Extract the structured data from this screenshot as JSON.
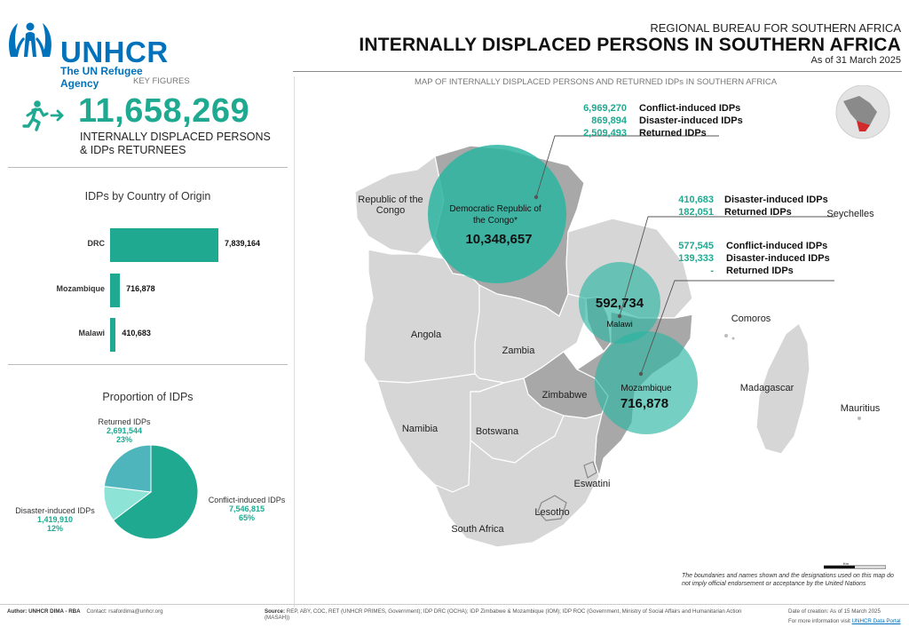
{
  "brand": {
    "name": "UNHCR",
    "tagline": "The UN Refugee Agency",
    "color": "#0072bc"
  },
  "header": {
    "bureau": "REGIONAL BUREAU FOR SOUTHERN AFRICA",
    "title": "INTERNALLY DISPLACED PERSONS IN SOUTHERN AFRICA",
    "date": "As of 31 March 2025"
  },
  "key_figures": {
    "section_label": "KEY FIGURES",
    "icon": "person-running-arrow-icon",
    "total": "11,658,269",
    "description_line1": "INTERNALLY DISPLACED PERSONS",
    "description_line2": "& IDPs RETURNEES"
  },
  "colors": {
    "accent": "#1fa991",
    "pie_conflict": "#1fa991",
    "pie_returned": "#4fb5bd",
    "pie_disaster": "#8de3d5",
    "map_land": "#d6d6d6",
    "map_highlight": "#a6a6a6",
    "bubble": "#2bb5a1"
  },
  "chart_data": [
    {
      "type": "bar",
      "title": "IDPs by Country of Origin",
      "categories": [
        "DRC",
        "Mozambique",
        "Malawi"
      ],
      "values": [
        7839164,
        716878,
        410683
      ],
      "value_labels": [
        "7,839,164",
        "716,878",
        "410,683"
      ]
    },
    {
      "type": "pie",
      "title": "Proportion of IDPs",
      "slices": [
        {
          "name": "Conflict-induced IDPs",
          "value": 7546815,
          "value_label": "7,546,815",
          "percent": "65%"
        },
        {
          "name": "Disaster-induced IDPs",
          "value": 1419910,
          "value_label": "1,419,910",
          "percent": "12%"
        },
        {
          "name": "Returned IDPs",
          "value": 2691544,
          "value_label": "2,691,544",
          "percent": "23%"
        }
      ]
    }
  ],
  "map": {
    "title": "MAP OF INTERNALLY DISPLACED PERSONS AND RETURNED IDPs IN SOUTHERN AFRICA",
    "countries": {
      "roc": {
        "line1": "Republic of the",
        "line2": "Congo"
      },
      "angola": "Angola",
      "zambia": "Zambia",
      "zimbabwe": "Zimbabwe",
      "namibia": "Namibia",
      "botswana": "Botswana",
      "eswatini": "Eswatini",
      "lesotho": "Lesotho",
      "south_africa": "South Africa",
      "madagascar": "Madagascar",
      "comoros": "Comoros",
      "seychelles": "Seychelles",
      "mauritius": "Mauritius"
    },
    "bubbles": {
      "drc": {
        "line1": "Democratic Republic of",
        "line2": "the Congo*",
        "total": "10,348,657"
      },
      "malawi": {
        "total": "592,734",
        "name": "Malawi"
      },
      "mozambique": {
        "name": "Mozambique",
        "total": "716,878"
      }
    },
    "stats": {
      "drc": [
        {
          "value": "6,969,270",
          "label": "Conflict-induced IDPs"
        },
        {
          "value": "869,894",
          "label": "Disaster-induced IDPs"
        },
        {
          "value": "2,509,493",
          "label": "Returned IDPs"
        }
      ],
      "malawi": [
        {
          "value": "410,683",
          "label": "Disaster-induced IDPs"
        },
        {
          "value": "182,051",
          "label": "Returned IDPs"
        }
      ],
      "mozambique": [
        {
          "value": "577,545",
          "label": "Conflict-induced IDPs"
        },
        {
          "value": "139,333",
          "label": "Disaster-induced IDPs"
        },
        {
          "value": "-",
          "label": "Returned IDPs"
        }
      ]
    },
    "scale_label": "Km",
    "disclaimer": "The boundaries and names shown and the designations used on this map do not imply official endorsement or acceptance by the United Nations"
  },
  "footer": {
    "author_label": "Author:",
    "author": "UNHCR DIMA - RBA",
    "contact_label": "Contact:",
    "contact": "rsafordima@unhcr.org",
    "sources_label": "Source:",
    "sources": "REP, ABY, COC, RET (UNHCR PRIMES, Government); IDP DRC (OCHA); IDP Zimbabwe & Mozambique (IOM); IDP ROC (Government, Ministry of Social Affairs and Humanitarian Action (MASAH))",
    "date_label": "Date of creation:",
    "date": "As of 15 March 2025",
    "portal_text": "For more information visit",
    "portal_link": "UNHCR Data Portal"
  }
}
